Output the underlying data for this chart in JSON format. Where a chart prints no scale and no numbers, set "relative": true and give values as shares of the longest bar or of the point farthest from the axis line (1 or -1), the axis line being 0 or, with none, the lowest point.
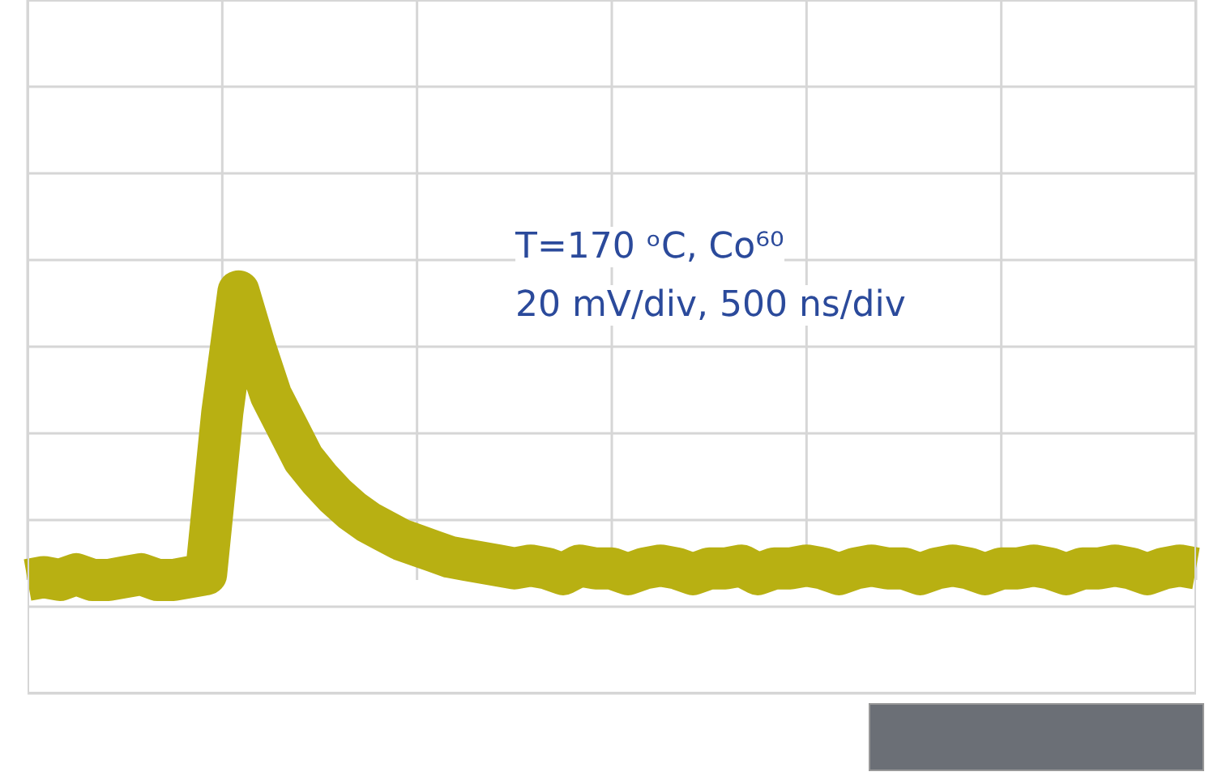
{
  "chart_data": {
    "type": "line",
    "relative": true,
    "grid": true,
    "line_style": "solid",
    "annotations": [
      "T=170 ᵒC, Co⁶⁰",
      "20 mV/div, 500 ns/div"
    ],
    "categories": [
      null,
      null,
      null,
      null,
      null,
      null,
      null,
      null,
      null,
      null,
      null,
      null,
      null,
      null,
      null,
      null,
      null,
      null,
      null,
      null,
      null,
      null,
      null,
      null,
      null,
      null,
      null,
      null,
      null,
      null,
      null,
      null,
      null,
      null,
      null,
      null,
      null,
      null,
      null,
      null,
      null,
      null,
      null,
      null,
      null,
      null,
      null,
      null,
      null,
      null,
      null,
      null,
      null,
      null,
      null,
      null,
      null,
      null,
      null,
      null,
      null,
      null,
      null,
      null,
      null,
      null,
      null,
      null,
      null,
      null,
      null,
      null,
      null
    ],
    "series": [
      {
        "color": "#b8b012",
        "values": [
          0.0,
          0.01,
          0.0,
          0.02,
          0.0,
          0.0,
          0.01,
          0.02,
          0.0,
          0.0,
          0.01,
          0.02,
          0.58,
          1.0,
          0.81,
          0.64,
          0.53,
          0.42,
          0.35,
          0.29,
          0.24,
          0.2,
          0.17,
          0.14,
          0.12,
          0.1,
          0.08,
          0.07,
          0.06,
          0.05,
          0.04,
          0.05,
          0.04,
          0.02,
          0.05,
          0.04,
          0.04,
          0.02,
          0.04,
          0.05,
          0.04,
          0.02,
          0.04,
          0.04,
          0.05,
          0.02,
          0.04,
          0.04,
          0.05,
          0.04,
          0.02,
          0.04,
          0.05,
          0.04,
          0.04,
          0.02,
          0.04,
          0.05,
          0.04,
          0.02,
          0.04,
          0.04,
          0.05,
          0.04,
          0.02,
          0.04,
          0.04,
          0.05,
          0.04,
          0.02,
          0.04,
          0.05,
          0.04
        ]
      }
    ]
  }
}
